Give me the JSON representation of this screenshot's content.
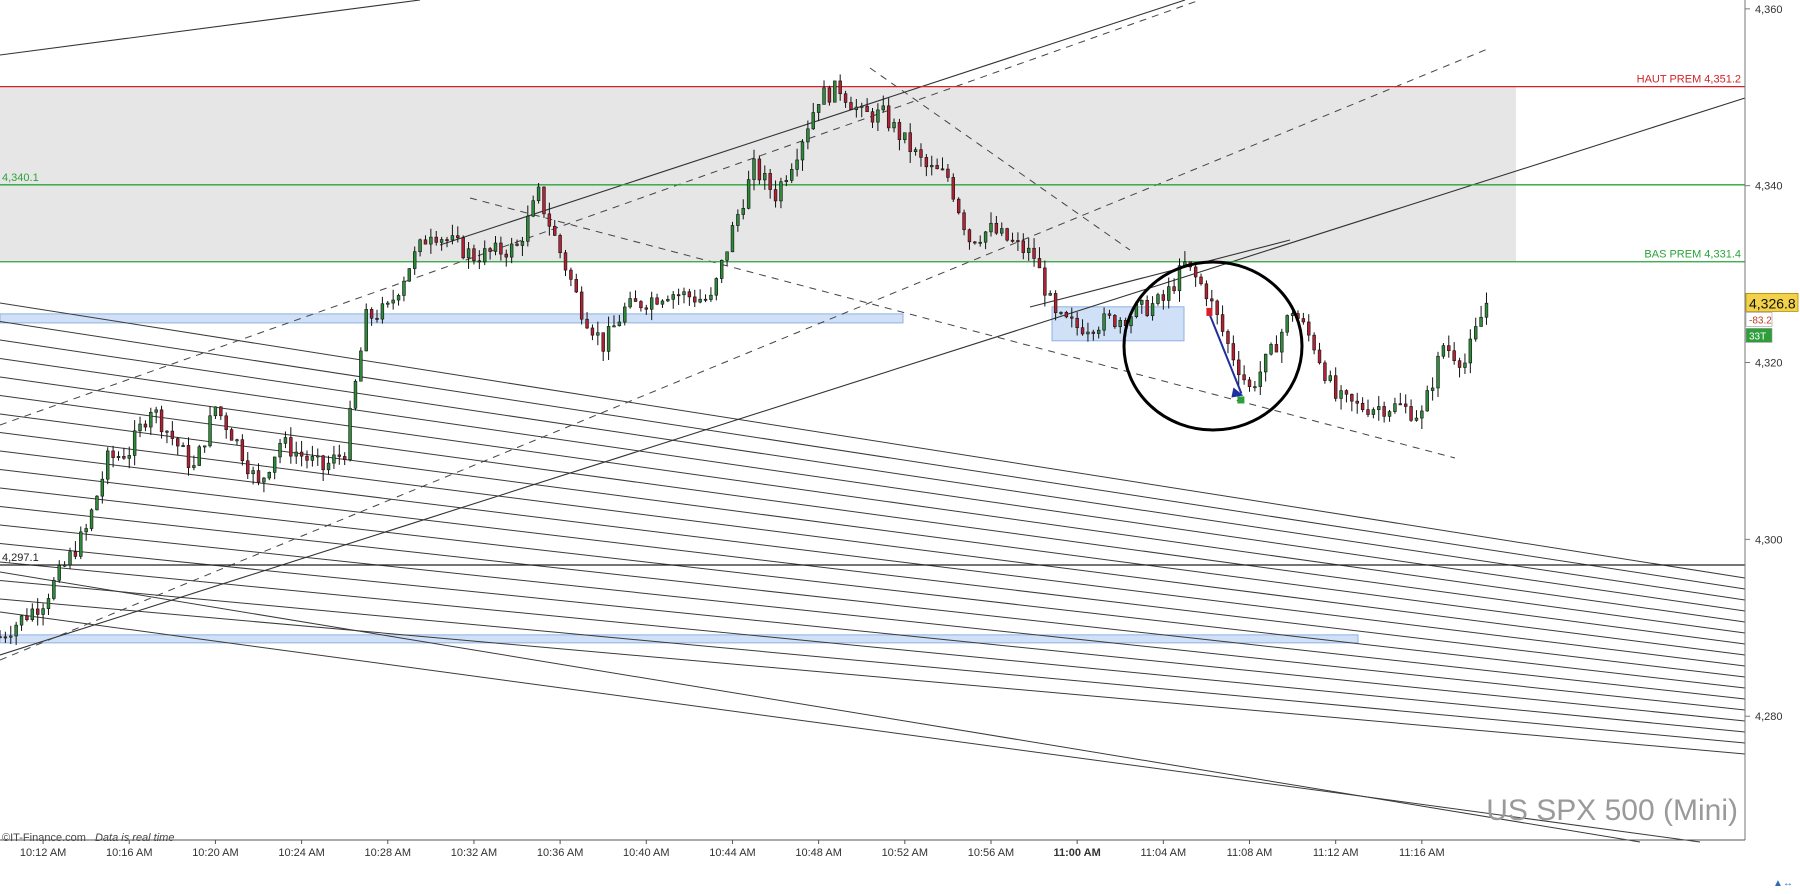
{
  "instrument": "US SPX 500 (Mini)",
  "credit": {
    "source": "©IT-Finance.com",
    "realtime": "Data is real time"
  },
  "last_price": {
    "value": "4,326.8",
    "color": "#f2d24a"
  },
  "side_tags": [
    {
      "text": "-83.2",
      "color": "#c0392b",
      "bg": "#ffffff"
    },
    {
      "text": "33T",
      "color": "#ffffff",
      "bg": "#2e9e3a"
    }
  ],
  "y_ticks": [
    "4,360",
    "4,340",
    "4,320",
    "4,300",
    "4,280"
  ],
  "x_ticks": [
    "10:12 AM",
    "10:16 AM",
    "10:20 AM",
    "10:24 AM",
    "10:28 AM",
    "10:32 AM",
    "10:36 AM",
    "10:40 AM",
    "10:44 AM",
    "10:48 AM",
    "10:52 AM",
    "10:56 AM",
    "11:00 AM",
    "11:04 AM",
    "11:08 AM",
    "11:12 AM",
    "11:16 AM"
  ],
  "x_tick_bold": "11:00 AM",
  "levels": [
    {
      "label": "HAUT PREM 4,351.2",
      "value": 4351.2,
      "color": "#d0232a",
      "side": "right"
    },
    {
      "label": "4,340.1",
      "value": 4340.1,
      "color": "#2aa33a",
      "side": "left"
    },
    {
      "label": "BAS PREM 4,331.4",
      "value": 4331.4,
      "color": "#2aa33a",
      "side": "right"
    },
    {
      "label": "4,297.1",
      "value": 4297.1,
      "color": "#222222",
      "side": "left"
    }
  ],
  "colors": {
    "up": "#2e8b3a",
    "down": "#b22234",
    "zone": "#e6e6e6",
    "box": "#cfe0f7",
    "arrow": "#1f2f9e"
  },
  "chart_data": {
    "type": "candlestick",
    "title": "US SPX 500 (Mini)",
    "ylim": [
      4266,
      4361
    ],
    "x_range": [
      "10:10 AM",
      "11:31 AM"
    ],
    "premium_zone": [
      4331.4,
      4351.2
    ],
    "price_path": [
      [
        "10:10 AM",
        4289
      ],
      [
        "10:12 AM",
        4293
      ],
      [
        "10:14 AM",
        4301
      ],
      [
        "10:15 AM",
        4309
      ],
      [
        "10:16 AM",
        4310
      ],
      [
        "10:17 AM",
        4315
      ],
      [
        "10:19 AM",
        4308
      ],
      [
        "10:20 AM",
        4315
      ],
      [
        "10:21 AM",
        4311
      ],
      [
        "10:22 AM",
        4306
      ],
      [
        "10:23 AM",
        4311
      ],
      [
        "10:25 AM",
        4308
      ],
      [
        "10:26 AM",
        4310
      ],
      [
        "10:27 AM",
        4325
      ],
      [
        "10:28 AM",
        4326
      ],
      [
        "10:29 AM",
        4331
      ],
      [
        "10:30 AM",
        4335
      ],
      [
        "10:32 AM",
        4332
      ],
      [
        "10:34 AM",
        4333
      ],
      [
        "10:35 AM",
        4339
      ],
      [
        "10:37 AM",
        4326
      ],
      [
        "10:38 AM",
        4322
      ],
      [
        "10:39 AM",
        4326
      ],
      [
        "10:41 AM",
        4328
      ],
      [
        "10:43 AM",
        4327
      ],
      [
        "10:44 AM",
        4335
      ],
      [
        "10:45 AM",
        4342
      ],
      [
        "10:46 AM",
        4339
      ],
      [
        "10:47 AM",
        4344
      ],
      [
        "10:48 AM",
        4350
      ],
      [
        "10:49 AM",
        4351
      ],
      [
        "10:50 AM",
        4348
      ],
      [
        "10:51 AM",
        4348
      ],
      [
        "10:53 AM",
        4342
      ],
      [
        "10:54 AM",
        4341
      ],
      [
        "10:55 AM",
        4334
      ],
      [
        "10:56 AM",
        4335
      ],
      [
        "10:58 AM",
        4332
      ],
      [
        "10:59 AM",
        4325
      ],
      [
        "11:00 AM",
        4324
      ],
      [
        "11:02 AM",
        4325
      ],
      [
        "11:04 AM",
        4327
      ],
      [
        "11:05 AM",
        4331
      ],
      [
        "11:06 AM",
        4328
      ],
      [
        "11:07 AM",
        4322
      ],
      [
        "11:08 AM",
        4317
      ],
      [
        "11:09 AM",
        4321
      ],
      [
        "11:10 AM",
        4326
      ],
      [
        "11:11 AM",
        4322
      ],
      [
        "11:12 AM",
        4316
      ],
      [
        "11:13 AM",
        4315
      ],
      [
        "11:15 AM",
        4315
      ],
      [
        "11:16 AM",
        4314
      ],
      [
        "11:17 AM",
        4322
      ],
      [
        "11:18 AM",
        4320
      ],
      [
        "11:19 AM",
        4326.8
      ]
    ]
  }
}
